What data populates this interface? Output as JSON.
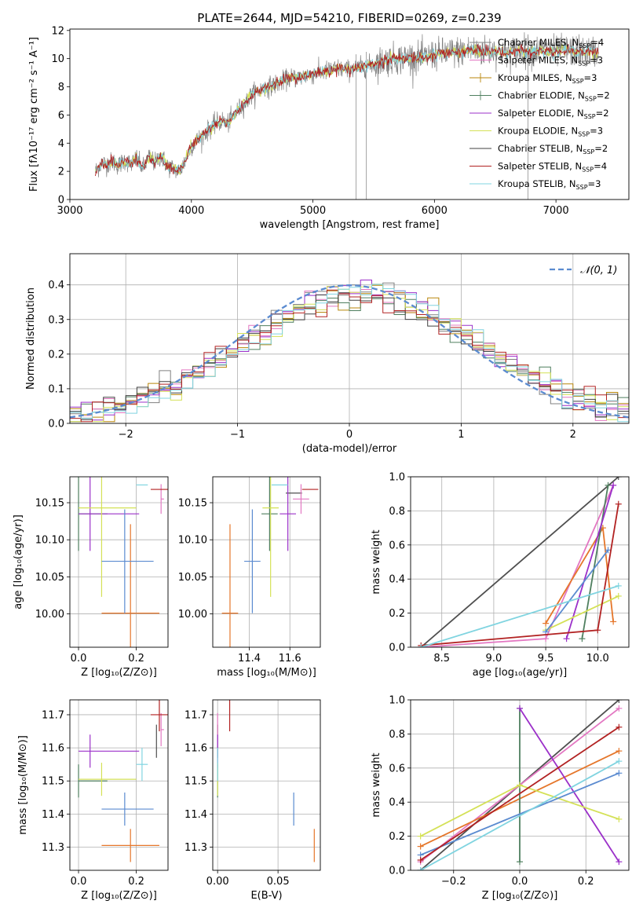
{
  "figure_title": "PLATE=2644, MJD=54210, FIBERID=0269, z=0.239",
  "colors": {
    "Chabrier MILES": "#808080",
    "Salpeter MILES": "#e377c2",
    "Kroupa MILES": "#b8860b",
    "Chabrier ELODIE": "#4f7f5f",
    "Salpeter ELODIE": "#9b30c9",
    "Kroupa ELODIE": "#d4e157",
    "Chabrier STELIB": "#404040",
    "Salpeter STELIB": "#b22222",
    "Kroupa STELIB": "#80d4e0"
  },
  "chart_data": [
    {
      "id": "spectrum",
      "type": "line",
      "title": "PLATE=2644, MJD=54210, FIBERID=0269, z=0.239",
      "xlabel": "wavelength [Angstrom, rest frame]",
      "ylabel": "Flux [fλ10⁻¹⁷ erg cm⁻² s⁻¹ A⁻¹]",
      "xlim": [
        3000,
        7600
      ],
      "ylim": [
        0,
        12.1
      ],
      "xticks": [
        3000,
        4000,
        5000,
        6000,
        7000
      ],
      "yticks": [
        0,
        2,
        4,
        6,
        8,
        10,
        12
      ],
      "grid": false,
      "legend_position": "top-right",
      "data_wavelength_range": [
        3210,
        7350
      ],
      "spectrum_nodes": {
        "x": [
          3210,
          3260,
          3300,
          3350,
          3400,
          3450,
          3500,
          3550,
          3600,
          3650,
          3700,
          3750,
          3800,
          3850,
          3900,
          3930,
          3970,
          4000,
          4050,
          4100,
          4150,
          4200,
          4250,
          4300,
          4350,
          4400,
          4450,
          4500,
          4600,
          4700,
          4800,
          4900,
          5000,
          5100,
          5200,
          5300,
          5400,
          5500,
          5600,
          5700,
          5800,
          5900,
          6000,
          6100,
          6200,
          6300,
          6400,
          6500,
          6600,
          6700,
          6800,
          6900,
          7000,
          7100,
          7200,
          7350
        ],
        "y": [
          2.0,
          2.6,
          2.5,
          2.7,
          2.4,
          2.8,
          2.5,
          2.9,
          2.2,
          3.0,
          2.6,
          3.1,
          2.4,
          2.2,
          2.0,
          2.4,
          3.2,
          3.8,
          4.2,
          4.6,
          5.0,
          5.4,
          5.6,
          5.4,
          6.0,
          6.5,
          6.9,
          7.5,
          7.9,
          8.2,
          8.6,
          8.7,
          8.9,
          9.1,
          9.3,
          9.2,
          9.4,
          9.6,
          9.9,
          10.0,
          10.1,
          10.0,
          10.3,
          10.4,
          10.5,
          10.6,
          10.5,
          10.6,
          10.4,
          10.6,
          10.5,
          10.6,
          10.5,
          10.6,
          10.5,
          10.5
        ]
      },
      "legend": [
        {
          "label": "Chabrier MILES, N",
          "sub": "SSP",
          "tail": "=4",
          "marker": "none"
        },
        {
          "label": "Salpeter MILES, N",
          "sub": "SSP",
          "tail": "=3",
          "marker": "none"
        },
        {
          "label": "Kroupa MILES, N",
          "sub": "SSP",
          "tail": "=3",
          "marker": "plus"
        },
        {
          "label": "Chabrier ELODIE, N",
          "sub": "SSP",
          "tail": "=2",
          "marker": "plus"
        },
        {
          "label": "Salpeter ELODIE, N",
          "sub": "SSP",
          "tail": "=2",
          "marker": "none"
        },
        {
          "label": "Kroupa ELODIE, N",
          "sub": "SSP",
          "tail": "=3",
          "marker": "none"
        },
        {
          "label": "Chabrier STELIB, N",
          "sub": "SSP",
          "tail": "=2",
          "marker": "none"
        },
        {
          "label": "Salpeter STELIB, N",
          "sub": "SSP",
          "tail": "=4",
          "marker": "none"
        },
        {
          "label": "Kroupa STELIB, N",
          "sub": "SSP",
          "tail": "=3",
          "marker": "none"
        }
      ]
    },
    {
      "id": "residuals",
      "type": "line",
      "xlabel": "(data-model)/error",
      "ylabel": "Normed distribution",
      "xlim": [
        -2.5,
        2.5
      ],
      "ylim": [
        0,
        0.49
      ],
      "xticks": [
        -2,
        -1,
        0,
        1,
        2
      ],
      "yticks": [
        0.0,
        0.1,
        0.2,
        0.3,
        0.4
      ],
      "grid": true,
      "legend_position": "top-right",
      "legend": [
        {
          "label": "𝒩(0, 1)",
          "style": "dashed",
          "color": "#5b8bd0"
        }
      ],
      "bin_width": 0.1,
      "histogram_bins": [
        -2.5,
        2.5
      ]
    },
    {
      "id": "age_vs_Z",
      "type": "scatter",
      "xlabel": "Z [log₁₀(Z/Z⊙)]",
      "ylabel": "age  [log₁₀(age/yr)]",
      "xlim": [
        -0.03,
        0.31
      ],
      "ylim": [
        9.955,
        10.185
      ],
      "xticks": [
        0.0,
        0.2
      ],
      "yticks": [
        10.0,
        10.05,
        10.1,
        10.15
      ],
      "grid": true
    },
    {
      "id": "age_vs_mass",
      "type": "scatter",
      "xlabel": "mass [log₁₀(M/M⊙)]",
      "xlim": [
        11.22,
        11.75
      ],
      "ylim": [
        9.955,
        10.185
      ],
      "xticks": [
        11.4,
        11.6
      ],
      "yticks": [
        10.0,
        10.05,
        10.1,
        10.15
      ],
      "grid": true
    },
    {
      "id": "massweight_vs_age",
      "type": "line",
      "xlabel": "age  [log₁₀(age/yr)]",
      "ylabel": "mass weight",
      "xlim": [
        8.2,
        10.3
      ],
      "ylim": [
        0.0,
        1.0
      ],
      "xticks": [
        8.5,
        9.0,
        9.5,
        10.0
      ],
      "yticks": [
        0.0,
        0.2,
        0.4,
        0.6,
        0.8,
        1.0
      ],
      "grid": true
    },
    {
      "id": "mass_vs_Z",
      "type": "scatter",
      "xlabel": "Z [log₁₀(Z/Z⊙)]",
      "ylabel": "mass [log₁₀(M/M⊙)]",
      "xlim": [
        -0.03,
        0.31
      ],
      "ylim": [
        11.23,
        11.745
      ],
      "xticks": [
        0.0,
        0.2
      ],
      "yticks": [
        11.3,
        11.4,
        11.5,
        11.6,
        11.7
      ],
      "grid": true
    },
    {
      "id": "mass_vs_EBV",
      "type": "scatter",
      "xlabel": "E(B-V)",
      "xlim": [
        -0.004,
        0.085
      ],
      "ylim": [
        11.23,
        11.745
      ],
      "xticks": [
        0.0,
        0.05
      ],
      "yticks": [
        11.3,
        11.4,
        11.5,
        11.6,
        11.7
      ],
      "grid": true
    },
    {
      "id": "massweight_vs_Z",
      "type": "line",
      "xlabel": "Z [log₁₀(Z/Z⊙)]",
      "ylabel": "mass weight",
      "xlim": [
        -0.33,
        0.33
      ],
      "ylim": [
        0.0,
        1.0
      ],
      "xticks": [
        -0.2,
        0.0,
        0.2
      ],
      "yticks": [
        0.0,
        0.2,
        0.4,
        0.6,
        0.8,
        1.0
      ],
      "grid": true
    }
  ],
  "models": [
    {
      "name": "Chabrier MILES",
      "color": "#4f4f4f",
      "Z": 0.27,
      "Zerr": [
        0.0,
        0.0
      ],
      "age": 10.163,
      "age_err": 0.0,
      "mass": 11.62,
      "ebv": 0.0,
      "age_weights": [
        [
          8.3,
          0.0
        ],
        [
          10.2,
          1.0
        ]
      ],
      "Z_weights": [
        [
          -0.3,
          0.0
        ],
        [
          0.3,
          1.0
        ]
      ]
    },
    {
      "name": "Salpeter MILES",
      "color": "#e377c2",
      "Z": 0.286,
      "Zerr": [
        0.0,
        0.01
      ],
      "age": 10.155,
      "age_err": 0.02,
      "mass": 11.655,
      "ebv": 0.0,
      "age_weights": [
        [
          8.3,
          0.0
        ],
        [
          9.5,
          0.05
        ],
        [
          10.15,
          0.95
        ]
      ],
      "Z_weights": [
        [
          -0.3,
          0.05
        ],
        [
          0.3,
          0.95
        ]
      ]
    },
    {
      "name": "Kroupa MILES",
      "color": "#e5762a",
      "Z": 0.18,
      "Zerr": [
        0.1,
        0.1
      ],
      "age": 10.001,
      "age_err": 0.12,
      "mass": 11.305,
      "ebv": 0.08,
      "age_weights": [
        [
          9.5,
          0.14
        ],
        [
          10.05,
          0.7
        ],
        [
          10.15,
          0.15
        ]
      ],
      "Z_weights": [
        [
          -0.3,
          0.14
        ],
        [
          0.3,
          0.7
        ]
      ]
    },
    {
      "name": "Chabrier ELODIE",
      "color": "#4f7f5f",
      "Z": 0.0,
      "Zerr": [
        0.0,
        0.1
      ],
      "age": 10.135,
      "age_err": 0.05,
      "mass": 11.5,
      "ebv": 0.0,
      "age_weights": [
        [
          9.85,
          0.05
        ],
        [
          10.1,
          0.95
        ]
      ],
      "Z_weights": [
        [
          0.0,
          0.05
        ],
        [
          0.0,
          0.95
        ]
      ]
    },
    {
      "name": "Salpeter ELODIE",
      "color": "#9b30c9",
      "Z": 0.04,
      "Zerr": [
        0.04,
        0.17
      ],
      "age": 10.135,
      "age_err": 0.05,
      "mass": 11.59,
      "ebv": 0.0,
      "age_weights": [
        [
          9.7,
          0.05
        ],
        [
          10.15,
          0.95
        ]
      ],
      "Z_weights": [
        [
          0.0,
          0.95
        ],
        [
          0.3,
          0.05
        ]
      ]
    },
    {
      "name": "Kroupa ELODIE",
      "color": "#d4e157",
      "Z": 0.08,
      "Zerr": [
        0.08,
        0.12
      ],
      "age": 10.143,
      "age_err": 0.12,
      "mass": 11.505,
      "ebv": 0.0,
      "age_weights": [
        [
          9.5,
          0.1
        ],
        [
          10.2,
          0.3
        ]
      ],
      "Z_weights": [
        [
          -0.3,
          0.2
        ],
        [
          0.0,
          0.5
        ],
        [
          0.3,
          0.3
        ]
      ]
    },
    {
      "name": "Chabrier STELIB",
      "color": "#5b8bd0",
      "Z": 0.16,
      "Zerr": [
        0.08,
        0.1
      ],
      "age": 10.071,
      "age_err": 0.07,
      "mass": 11.415,
      "ebv": 0.063,
      "age_weights": [
        [
          9.5,
          0.09
        ],
        [
          10.1,
          0.57
        ]
      ],
      "Z_weights": [
        [
          -0.3,
          0.09
        ],
        [
          0.3,
          0.57
        ]
      ]
    },
    {
      "name": "Salpeter STELIB",
      "color": "#b22222",
      "Z": 0.28,
      "Zerr": [
        0.03,
        0.04
      ],
      "age": 10.168,
      "age_err": 0.0,
      "mass": 11.7,
      "ebv": 0.01,
      "age_weights": [
        [
          8.3,
          0.01
        ],
        [
          10.0,
          0.1
        ],
        [
          10.2,
          0.84
        ]
      ],
      "Z_weights": [
        [
          -0.3,
          0.06
        ],
        [
          0.3,
          0.84
        ]
      ]
    },
    {
      "name": "Kroupa STELIB",
      "color": "#80d4e0",
      "Z": 0.22,
      "Zerr": [
        0.02,
        0.02
      ],
      "age": 10.174,
      "age_err": 0.0,
      "mass": 11.55,
      "ebv": 0.0,
      "age_weights": [
        [
          8.3,
          0.0
        ],
        [
          10.2,
          0.36
        ]
      ],
      "Z_weights": [
        [
          -0.3,
          0.0
        ],
        [
          0.3,
          0.64
        ]
      ]
    }
  ]
}
